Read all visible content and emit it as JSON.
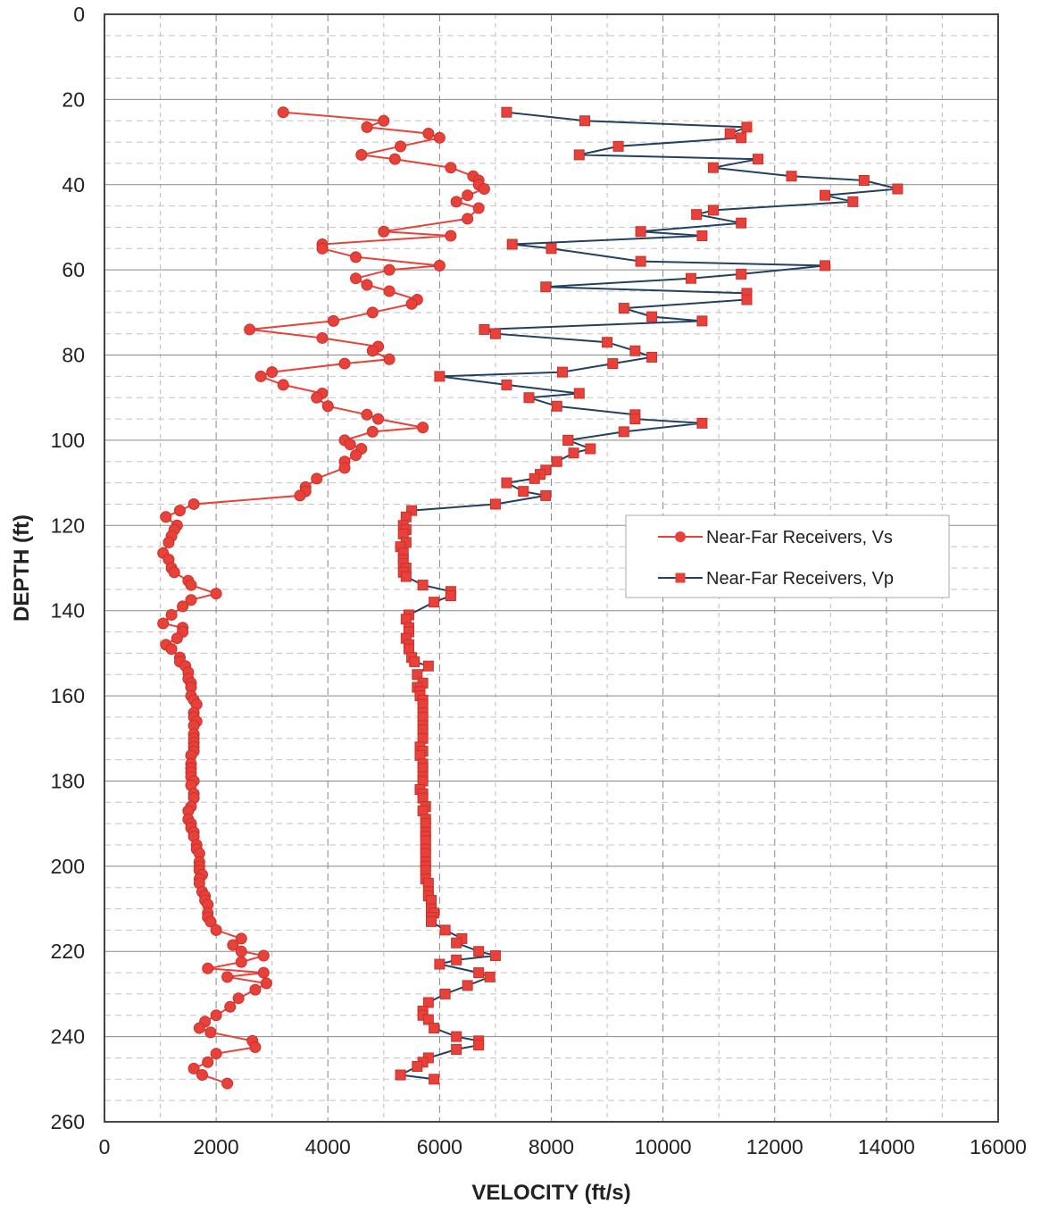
{
  "chart_data": {
    "type": "line",
    "title": "",
    "xlabel": "VELOCITY (ft/s)",
    "ylabel": "DEPTH (ft)",
    "xlim": [
      0,
      16000
    ],
    "ylim": [
      0,
      260
    ],
    "y_inverted": true,
    "x_ticks": [
      0,
      2000,
      4000,
      6000,
      8000,
      10000,
      12000,
      14000,
      16000
    ],
    "y_ticks": [
      0,
      20,
      40,
      60,
      80,
      100,
      120,
      140,
      160,
      180,
      200,
      220,
      240,
      260
    ],
    "x_tick_labels": [
      "0",
      "2000",
      "4000",
      "6000",
      "8000",
      "10000",
      "12000",
      "14000",
      "16000"
    ],
    "y_tick_labels": [
      "0",
      "20",
      "40",
      "60",
      "80",
      "100",
      "120",
      "140",
      "160",
      "180",
      "200",
      "220",
      "240",
      "260"
    ],
    "grid": true,
    "legend_position": "right-middle",
    "series": [
      {
        "name": "Near-Far Receivers, Vs",
        "color": "#e8413a",
        "marker": "circle",
        "points": [
          [
            3200,
            23
          ],
          [
            5000,
            25
          ],
          [
            4700,
            26.5
          ],
          [
            5800,
            28
          ],
          [
            6000,
            29
          ],
          [
            5300,
            31
          ],
          [
            4600,
            33
          ],
          [
            5200,
            34
          ],
          [
            6200,
            36
          ],
          [
            6600,
            38
          ],
          [
            6700,
            39
          ],
          [
            6700,
            40
          ],
          [
            6800,
            41
          ],
          [
            6500,
            42.5
          ],
          [
            6300,
            44
          ],
          [
            6700,
            45.5
          ],
          [
            6500,
            48
          ],
          [
            5000,
            51
          ],
          [
            6200,
            52
          ],
          [
            3900,
            54
          ],
          [
            3900,
            55
          ],
          [
            4500,
            57
          ],
          [
            6000,
            59
          ],
          [
            5100,
            60
          ],
          [
            4500,
            62
          ],
          [
            4700,
            63.5
          ],
          [
            5100,
            65
          ],
          [
            5600,
            67
          ],
          [
            5500,
            68
          ],
          [
            4800,
            70
          ],
          [
            4100,
            72
          ],
          [
            2600,
            74
          ],
          [
            3900,
            76
          ],
          [
            4900,
            78
          ],
          [
            4800,
            79
          ],
          [
            5100,
            81
          ],
          [
            4300,
            82
          ],
          [
            3000,
            84
          ],
          [
            2800,
            85
          ],
          [
            3200,
            87
          ],
          [
            3900,
            89
          ],
          [
            3800,
            90
          ],
          [
            4000,
            92
          ],
          [
            4700,
            94
          ],
          [
            4900,
            95
          ],
          [
            5700,
            97
          ],
          [
            4800,
            98
          ],
          [
            4300,
            100
          ],
          [
            4400,
            101
          ],
          [
            4600,
            102
          ],
          [
            4500,
            103.5
          ],
          [
            4300,
            105
          ],
          [
            4300,
            106.5
          ],
          [
            3800,
            109
          ],
          [
            3600,
            111
          ],
          [
            3600,
            112
          ],
          [
            3500,
            113
          ],
          [
            1600,
            115
          ],
          [
            1350,
            116.5
          ],
          [
            1100,
            118
          ],
          [
            1300,
            120
          ],
          [
            1250,
            121
          ],
          [
            1200,
            122.5
          ],
          [
            1150,
            124
          ],
          [
            1050,
            126.5
          ],
          [
            1150,
            128
          ],
          [
            1200,
            130
          ],
          [
            1250,
            131
          ],
          [
            1500,
            133
          ],
          [
            1550,
            134
          ],
          [
            2000,
            136
          ],
          [
            1550,
            137.5
          ],
          [
            1400,
            139
          ],
          [
            1200,
            141
          ],
          [
            1050,
            143
          ],
          [
            1400,
            144
          ],
          [
            1400,
            145
          ],
          [
            1300,
            146.5
          ],
          [
            1100,
            148
          ],
          [
            1200,
            149
          ],
          [
            1350,
            151
          ],
          [
            1350,
            152
          ],
          [
            1450,
            153
          ],
          [
            1500,
            154.5
          ],
          [
            1500,
            156
          ],
          [
            1550,
            157
          ],
          [
            1550,
            158
          ],
          [
            1550,
            160
          ],
          [
            1600,
            161
          ],
          [
            1650,
            162
          ],
          [
            1600,
            164
          ],
          [
            1600,
            165
          ],
          [
            1650,
            166
          ],
          [
            1600,
            167
          ],
          [
            1600,
            169
          ],
          [
            1600,
            170
          ],
          [
            1600,
            171
          ],
          [
            1600,
            172
          ],
          [
            1600,
            173
          ],
          [
            1550,
            174
          ],
          [
            1550,
            176
          ],
          [
            1550,
            177
          ],
          [
            1550,
            178
          ],
          [
            1550,
            179
          ],
          [
            1600,
            180
          ],
          [
            1550,
            181
          ],
          [
            1600,
            183
          ],
          [
            1600,
            184
          ],
          [
            1550,
            186
          ],
          [
            1500,
            187
          ],
          [
            1500,
            189
          ],
          [
            1550,
            190
          ],
          [
            1550,
            191
          ],
          [
            1600,
            192
          ],
          [
            1600,
            193
          ],
          [
            1650,
            195
          ],
          [
            1650,
            196
          ],
          [
            1700,
            197
          ],
          [
            1700,
            199
          ],
          [
            1700,
            200
          ],
          [
            1700,
            201
          ],
          [
            1750,
            202
          ],
          [
            1700,
            203
          ],
          [
            1700,
            204
          ],
          [
            1750,
            206
          ],
          [
            1800,
            207
          ],
          [
            1800,
            208
          ],
          [
            1850,
            209
          ],
          [
            1850,
            211
          ],
          [
            1850,
            212
          ],
          [
            1900,
            213
          ],
          [
            2000,
            215
          ],
          [
            2450,
            217
          ],
          [
            2300,
            218.5
          ],
          [
            2450,
            220
          ],
          [
            2850,
            221
          ],
          [
            2450,
            222.5
          ],
          [
            1850,
            224
          ],
          [
            2850,
            225
          ],
          [
            2200,
            226
          ],
          [
            2900,
            227.5
          ],
          [
            2700,
            229
          ],
          [
            2400,
            231
          ],
          [
            2250,
            233
          ],
          [
            2000,
            235
          ],
          [
            1800,
            236.5
          ],
          [
            1700,
            238
          ],
          [
            1900,
            239
          ],
          [
            2650,
            241
          ],
          [
            2700,
            242.5
          ],
          [
            2000,
            244
          ],
          [
            1850,
            246
          ],
          [
            1600,
            247.5
          ],
          [
            1750,
            249
          ],
          [
            2200,
            251
          ]
        ]
      },
      {
        "name": "Near-Far Receivers, Vp",
        "color": "#22405f",
        "marker": "square",
        "points": [
          [
            7200,
            23
          ],
          [
            8600,
            25
          ],
          [
            11500,
            26.5
          ],
          [
            11200,
            28
          ],
          [
            11400,
            29
          ],
          [
            9200,
            31
          ],
          [
            8500,
            33
          ],
          [
            11700,
            34
          ],
          [
            10900,
            36
          ],
          [
            12300,
            38
          ],
          [
            13600,
            39
          ],
          [
            14200,
            41
          ],
          [
            12900,
            42.5
          ],
          [
            13400,
            44
          ],
          [
            10900,
            46
          ],
          [
            10600,
            47
          ],
          [
            11400,
            49
          ],
          [
            9600,
            51
          ],
          [
            10700,
            52
          ],
          [
            7300,
            54
          ],
          [
            8000,
            55
          ],
          [
            9600,
            58
          ],
          [
            12900,
            59
          ],
          [
            11400,
            61
          ],
          [
            10500,
            62
          ],
          [
            7900,
            64
          ],
          [
            11500,
            65.5
          ],
          [
            11500,
            67
          ],
          [
            9300,
            69
          ],
          [
            9800,
            71
          ],
          [
            10700,
            72
          ],
          [
            6800,
            74
          ],
          [
            7000,
            75
          ],
          [
            9000,
            77
          ],
          [
            9500,
            79
          ],
          [
            9800,
            80.5
          ],
          [
            9100,
            82
          ],
          [
            8200,
            84
          ],
          [
            6000,
            85
          ],
          [
            7200,
            87
          ],
          [
            8500,
            89
          ],
          [
            7600,
            90
          ],
          [
            8100,
            92
          ],
          [
            9500,
            94
          ],
          [
            9500,
            95
          ],
          [
            10700,
            96
          ],
          [
            9300,
            98
          ],
          [
            8300,
            100
          ],
          [
            8300,
            100
          ],
          [
            8700,
            102
          ],
          [
            8400,
            103
          ],
          [
            8100,
            105
          ],
          [
            7900,
            107
          ],
          [
            7800,
            108
          ],
          [
            7700,
            109
          ],
          [
            7200,
            110
          ],
          [
            7500,
            112
          ],
          [
            7900,
            113
          ],
          [
            7000,
            115
          ],
          [
            5500,
            116.5
          ],
          [
            5400,
            118
          ],
          [
            5350,
            120
          ],
          [
            5400,
            121
          ],
          [
            5350,
            122
          ],
          [
            5400,
            124
          ],
          [
            5300,
            125
          ],
          [
            5350,
            126.5
          ],
          [
            5350,
            128
          ],
          [
            5350,
            129
          ],
          [
            5400,
            130
          ],
          [
            5350,
            131
          ],
          [
            5400,
            132
          ],
          [
            5700,
            134
          ],
          [
            6200,
            135.5
          ],
          [
            6200,
            136.5
          ],
          [
            5900,
            138
          ],
          [
            5450,
            141
          ],
          [
            5400,
            142
          ],
          [
            5450,
            144
          ],
          [
            5450,
            145
          ],
          [
            5400,
            146.5
          ],
          [
            5450,
            148
          ],
          [
            5450,
            149
          ],
          [
            5500,
            151
          ],
          [
            5550,
            152
          ],
          [
            5800,
            153
          ],
          [
            5600,
            155
          ],
          [
            5700,
            157
          ],
          [
            5600,
            158
          ],
          [
            5650,
            159
          ],
          [
            5650,
            160
          ],
          [
            5700,
            161
          ],
          [
            5700,
            162
          ],
          [
            5700,
            164
          ],
          [
            5700,
            165
          ],
          [
            5700,
            167
          ],
          [
            5700,
            168
          ],
          [
            5700,
            170
          ],
          [
            5650,
            172
          ],
          [
            5700,
            173
          ],
          [
            5650,
            174
          ],
          [
            5700,
            176
          ],
          [
            5700,
            177
          ],
          [
            5700,
            179
          ],
          [
            5700,
            180
          ],
          [
            5650,
            182
          ],
          [
            5700,
            183
          ],
          [
            5700,
            184
          ],
          [
            5750,
            186
          ],
          [
            5700,
            187
          ],
          [
            5750,
            189
          ],
          [
            5750,
            190
          ],
          [
            5750,
            192
          ],
          [
            5750,
            193
          ],
          [
            5750,
            194
          ],
          [
            5750,
            196
          ],
          [
            5750,
            197
          ],
          [
            5750,
            199
          ],
          [
            5750,
            200
          ],
          [
            5750,
            201
          ],
          [
            5750,
            203
          ],
          [
            5800,
            204
          ],
          [
            5800,
            206
          ],
          [
            5800,
            207
          ],
          [
            5850,
            208
          ],
          [
            5850,
            210
          ],
          [
            5900,
            211
          ],
          [
            5850,
            212
          ],
          [
            5850,
            213
          ],
          [
            6100,
            215
          ],
          [
            6400,
            217
          ],
          [
            6300,
            218
          ],
          [
            6700,
            220
          ],
          [
            7000,
            221
          ],
          [
            6300,
            222
          ],
          [
            6000,
            223
          ],
          [
            6700,
            225
          ],
          [
            6900,
            226
          ],
          [
            6500,
            228
          ],
          [
            6100,
            230
          ],
          [
            5800,
            232
          ],
          [
            5700,
            234
          ],
          [
            5700,
            235
          ],
          [
            5800,
            236
          ],
          [
            5900,
            238
          ],
          [
            6300,
            240
          ],
          [
            6700,
            241
          ],
          [
            6700,
            242
          ],
          [
            6300,
            243
          ],
          [
            5800,
            245
          ],
          [
            5700,
            246
          ],
          [
            5600,
            247
          ],
          [
            5300,
            249
          ],
          [
            5900,
            250
          ]
        ]
      }
    ]
  }
}
